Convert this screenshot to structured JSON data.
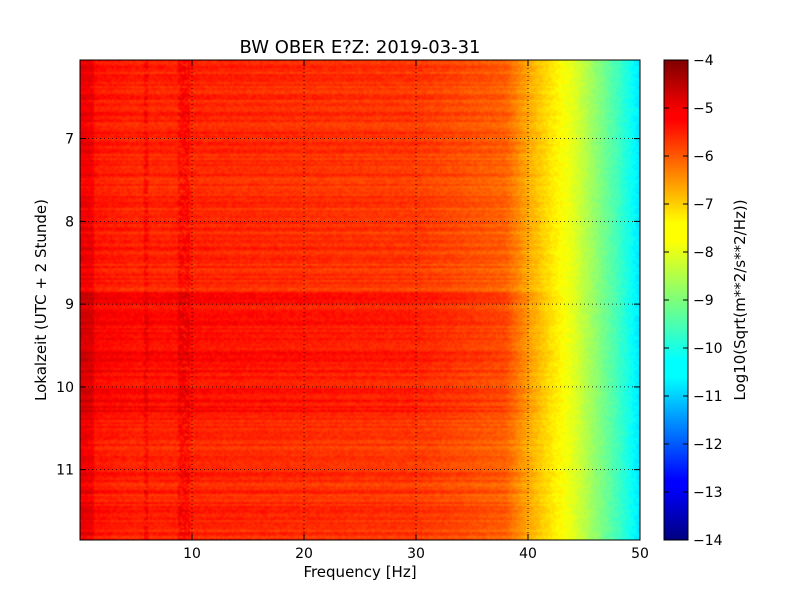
{
  "chart_data": {
    "type": "heatmap",
    "title": "BW OBER E?Z: 2019-03-31",
    "xlabel": "Frequency [Hz]",
    "ylabel": "Lokalzeit (UTC + 2 Stunde)",
    "xlim": [
      0,
      50
    ],
    "ylim": [
      6.05,
      11.85
    ],
    "y_inverted": true,
    "x_ticks": [
      10,
      20,
      30,
      40,
      50
    ],
    "x_tick_labels": [
      "10",
      "20",
      "30",
      "40",
      "50"
    ],
    "y_ticks": [
      7,
      8,
      9,
      10,
      11
    ],
    "y_tick_labels": [
      "7",
      "8",
      "9",
      "10",
      "11"
    ],
    "grid": true,
    "grid_style": "dotted",
    "colormap": "jet",
    "colorbar": {
      "label": "Log10(Sqrt(m**2/s**2/Hz))",
      "min": -14,
      "max": -4,
      "ticks": [
        -4,
        -5,
        -6,
        -7,
        -8,
        -9,
        -10,
        -11,
        -12,
        -13,
        -14
      ],
      "tick_labels": [
        "−4",
        "−5",
        "−6",
        "−7",
        "−8",
        "−9",
        "−10",
        "−11",
        "−12",
        "−13",
        "−14"
      ]
    },
    "spectrum_profile": {
      "frequency_hz": [
        0,
        5,
        10,
        20,
        30,
        38,
        40,
        42,
        44,
        46,
        48,
        50
      ],
      "level_log10": [
        -5.4,
        -5.6,
        -5.6,
        -5.7,
        -5.8,
        -6.2,
        -6.9,
        -7.5,
        -8.0,
        -8.8,
        -9.6,
        -10.5
      ]
    },
    "features": [
      {
        "frequency_hz": 5.9,
        "description_level": -5.0
      },
      {
        "frequency_hz": 9.0,
        "description_level": -5.0
      },
      {
        "frequency_hz": 9.6,
        "description_level": -5.0
      }
    ],
    "high_energy_time_ranges": [
      [
        8.85,
        10.35
      ]
    ]
  }
}
